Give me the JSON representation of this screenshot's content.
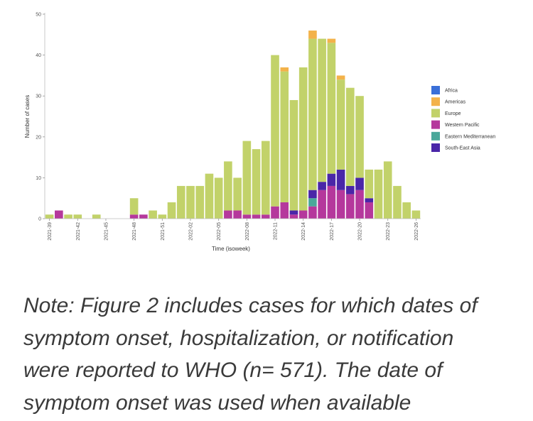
{
  "chart_data": {
    "type": "bar",
    "stacked": true,
    "xlabel": "Time (isoweek)",
    "ylabel": "Number of cases",
    "ylim": [
      0,
      50
    ],
    "y_ticks": [
      0,
      10,
      20,
      30,
      40,
      50
    ],
    "grid": false,
    "legend_position": "right",
    "categories": [
      "2021-39",
      "2021-40",
      "2021-41",
      "2021-42",
      "2021-43",
      "2021-44",
      "2021-45",
      "2021-46",
      "2021-47",
      "2021-48",
      "2021-49",
      "2021-50",
      "2021-51",
      "2021-52",
      "2022-01",
      "2022-02",
      "2022-03",
      "2022-04",
      "2022-05",
      "2022-06",
      "2022-07",
      "2022-08",
      "2022-09",
      "2022-10",
      "2022-11",
      "2022-12",
      "2022-13",
      "2022-14",
      "2022-15",
      "2022-16",
      "2022-17",
      "2022-18",
      "2022-19",
      "2022-20",
      "2022-21",
      "2022-22",
      "2022-23",
      "2022-24",
      "2022-25",
      "2022-26"
    ],
    "x_tick_labels": [
      "2021-39",
      "2021-42",
      "2021-45",
      "2021-48",
      "2021-51",
      "2022-02",
      "2022-05",
      "2022-08",
      "2022-11",
      "2022-14",
      "2022-17",
      "2022-20",
      "2022-23",
      "2022-26"
    ],
    "series": [
      {
        "name": "Africa",
        "color": "#3a6fd8",
        "values": [
          0,
          0,
          0,
          0,
          0,
          0,
          0,
          0,
          0,
          0,
          0,
          0,
          0,
          0,
          0,
          0,
          0,
          0,
          0,
          0,
          0,
          0,
          0,
          0,
          0,
          0,
          0,
          0,
          0,
          0,
          0,
          0,
          0,
          0,
          0,
          0,
          0,
          0,
          0,
          0
        ]
      },
      {
        "name": "Western Pacific",
        "color": "#b5389c",
        "values": [
          0,
          2,
          0,
          0,
          0,
          0,
          0,
          0,
          0,
          1,
          1,
          0,
          0,
          0,
          0,
          0,
          0,
          0,
          0,
          2,
          2,
          1,
          1,
          1,
          3,
          4,
          1,
          2,
          3,
          7,
          8,
          7,
          6,
          7,
          4,
          0,
          0,
          0,
          0,
          0
        ]
      },
      {
        "name": "Eastern Mediterranean",
        "color": "#4aa89a",
        "values": [
          0,
          0,
          0,
          0,
          0,
          0,
          0,
          0,
          0,
          0,
          0,
          0,
          0,
          0,
          0,
          0,
          0,
          0,
          0,
          0,
          0,
          0,
          0,
          0,
          0,
          0,
          0,
          0,
          2,
          0,
          0,
          0,
          0,
          0,
          0,
          0,
          0,
          0,
          0,
          0
        ]
      },
      {
        "name": "South-East Asia",
        "color": "#4a26a8",
        "values": [
          0,
          0,
          0,
          0,
          0,
          0,
          0,
          0,
          0,
          0,
          0,
          0,
          0,
          0,
          0,
          0,
          0,
          0,
          0,
          0,
          0,
          0,
          0,
          0,
          0,
          0,
          1,
          0,
          2,
          2,
          3,
          5,
          2,
          3,
          1,
          0,
          0,
          0,
          0,
          0
        ]
      },
      {
        "name": "Europe",
        "color": "#c2d26a",
        "values": [
          1,
          0,
          1,
          1,
          0,
          1,
          0,
          0,
          0,
          4,
          0,
          2,
          1,
          4,
          8,
          8,
          8,
          11,
          10,
          12,
          8,
          18,
          16,
          18,
          37,
          32,
          27,
          35,
          37,
          35,
          32,
          22,
          24,
          20,
          7,
          12,
          14,
          8,
          4,
          2
        ]
      },
      {
        "name": "Americas",
        "color": "#f3b24a",
        "values": [
          0,
          0,
          0,
          0,
          0,
          0,
          0,
          0,
          0,
          0,
          0,
          0,
          0,
          0,
          0,
          0,
          0,
          0,
          0,
          0,
          0,
          0,
          0,
          0,
          0,
          1,
          0,
          0,
          2,
          0,
          1,
          1,
          0,
          0,
          0,
          0,
          0,
          0,
          0,
          0
        ]
      }
    ],
    "legend_order": [
      "Africa",
      "Americas",
      "Europe",
      "Western Pacific",
      "Eastern Mediterranean",
      "South-East Asia"
    ]
  },
  "note": {
    "lines": [
      "Note: Figure 2 includes cases for which dates of",
      "symptom onset, hospitalization, or notification",
      "were reported to WHO (n= 571). The date of",
      "symptom onset was used when available"
    ]
  }
}
